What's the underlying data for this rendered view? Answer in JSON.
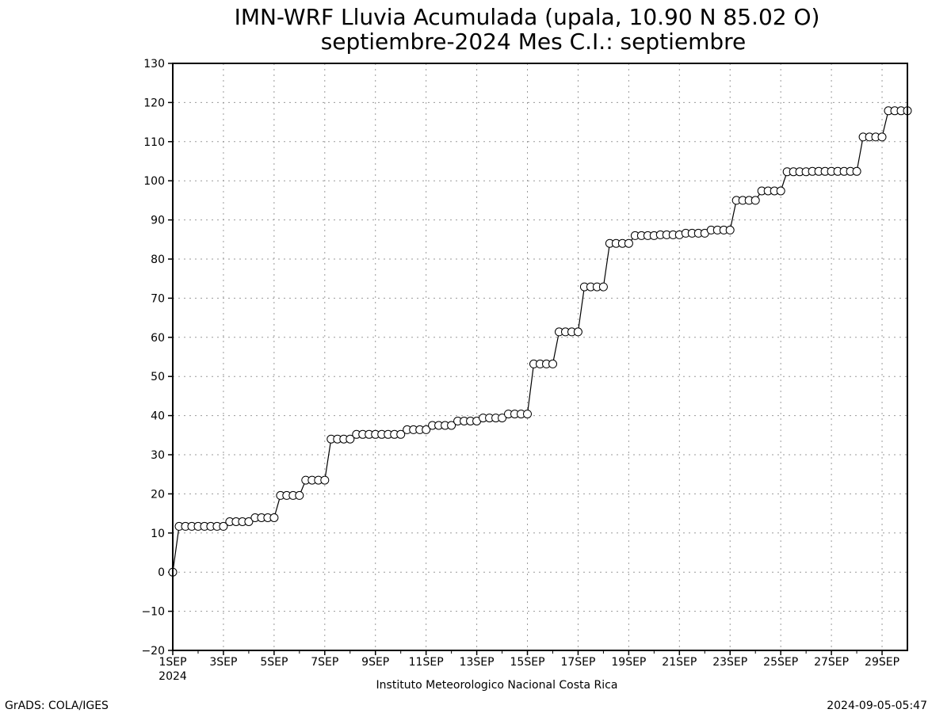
{
  "chart_data": {
    "type": "line",
    "title": "IMN-WRF  Lluvia Acumulada (upala, 10.90  N 85.02  O)",
    "subtitle": "septiembre-2024 Mes C.I.: septiembre",
    "xlabel": "Instituto Meteorologico Nacional Costa Rica",
    "ylabel": "",
    "ylim": [
      -20,
      130
    ],
    "xlim": [
      1,
      30
    ],
    "grid": true,
    "yticks": [
      -20,
      -10,
      0,
      10,
      20,
      30,
      40,
      50,
      60,
      70,
      80,
      90,
      100,
      110,
      120,
      130
    ],
    "xticks": [
      {
        "x": 1,
        "label": "1SEP",
        "sublabel": "2024"
      },
      {
        "x": 3,
        "label": "3SEP"
      },
      {
        "x": 5,
        "label": "5SEP"
      },
      {
        "x": 7,
        "label": "7SEP"
      },
      {
        "x": 9,
        "label": "9SEP"
      },
      {
        "x": 11,
        "label": "11SEP"
      },
      {
        "x": 13,
        "label": "13SEP"
      },
      {
        "x": 15,
        "label": "15SEP"
      },
      {
        "x": 17,
        "label": "17SEP"
      },
      {
        "x": 19,
        "label": "19SEP"
      },
      {
        "x": 21,
        "label": "21SEP"
      },
      {
        "x": 23,
        "label": "23SEP"
      },
      {
        "x": 25,
        "label": "25SEP"
      },
      {
        "x": 27,
        "label": "27SEP"
      },
      {
        "x": 29,
        "label": "29SEP"
      }
    ],
    "series": [
      {
        "x": [
          1,
          1.25,
          1.5,
          1.75,
          2,
          2.25,
          2.5,
          2.75,
          3,
          3.25,
          3.5,
          3.75,
          4,
          4.25,
          4.5,
          4.75,
          5,
          5.25,
          5.5,
          5.75,
          6,
          6.25,
          6.5,
          6.75,
          7,
          7.25,
          7.5,
          7.75,
          8,
          8.25,
          8.5,
          8.75,
          9,
          9.25,
          9.5,
          9.75,
          10,
          10.25,
          10.5,
          10.75,
          11,
          11.25,
          11.5,
          11.75,
          12,
          12.25,
          12.5,
          12.75,
          13,
          13.25,
          13.5,
          13.75,
          14,
          14.25,
          14.5,
          14.75,
          15,
          15.25,
          15.5,
          15.75,
          16,
          16.25,
          16.5,
          16.75,
          17,
          17.25,
          17.5,
          17.75,
          18,
          18.25,
          18.5,
          18.75,
          19,
          19.25,
          19.5,
          19.75,
          20,
          20.25,
          20.5,
          20.75,
          21,
          21.25,
          21.5,
          21.75,
          22,
          22.25,
          22.5,
          22.75,
          23,
          23.25,
          23.5,
          23.75,
          24,
          24.25,
          24.5,
          24.75,
          25,
          25.25,
          25.5,
          25.75,
          26,
          26.25,
          26.5,
          26.75,
          27,
          27.25,
          27.5,
          27.75,
          28,
          28.25,
          28.5,
          28.75,
          29,
          29.25,
          29.5,
          29.75,
          30
        ],
        "values": [
          0,
          11.7,
          11.7,
          11.7,
          11.7,
          11.7,
          11.7,
          11.7,
          11.7,
          12.9,
          12.9,
          12.9,
          12.9,
          13.9,
          13.9,
          13.9,
          13.9,
          19.6,
          19.6,
          19.6,
          19.6,
          23.5,
          23.5,
          23.5,
          23.5,
          34,
          34,
          34,
          34,
          35.2,
          35.2,
          35.2,
          35.2,
          35.2,
          35.2,
          35.2,
          35.2,
          36.4,
          36.4,
          36.4,
          36.4,
          37.5,
          37.5,
          37.5,
          37.5,
          38.6,
          38.6,
          38.6,
          38.6,
          39.4,
          39.4,
          39.4,
          39.4,
          40.4,
          40.4,
          40.4,
          40.4,
          53.2,
          53.2,
          53.2,
          53.2,
          61.4,
          61.4,
          61.4,
          61.4,
          72.9,
          72.9,
          72.9,
          72.9,
          84,
          84,
          84,
          84,
          86,
          86,
          86,
          86,
          86.2,
          86.2,
          86.2,
          86.2,
          86.6,
          86.6,
          86.6,
          86.6,
          87.4,
          87.4,
          87.4,
          87.4,
          95,
          95,
          95,
          95,
          97.4,
          97.4,
          97.4,
          97.4,
          102.3,
          102.3,
          102.3,
          102.3,
          102.4,
          102.4,
          102.4,
          102.4,
          102.4,
          102.4,
          102.4,
          102.4,
          111.2,
          111.2,
          111.2,
          111.2,
          117.9,
          117.9,
          117.9,
          117.9
        ]
      }
    ]
  },
  "footer": {
    "left": "GrADS: COLA/IGES",
    "right": "2024-09-05-05:47"
  }
}
